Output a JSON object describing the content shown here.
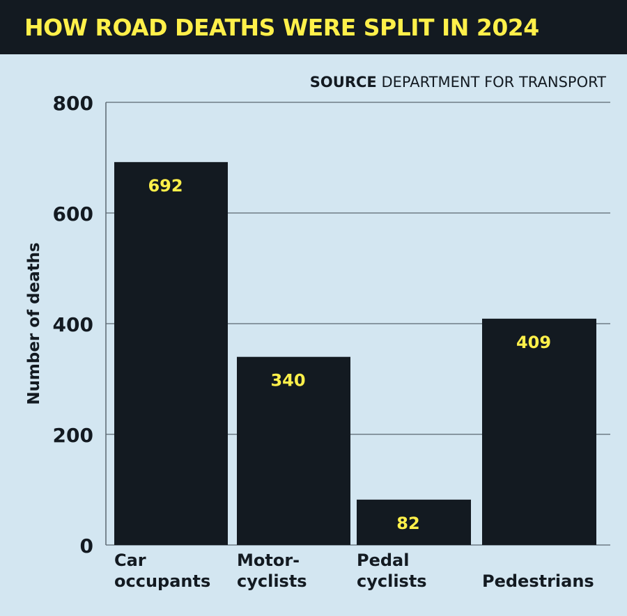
{
  "title": "HOW ROAD DEATHS WERE SPLIT IN 2024",
  "source_label": "SOURCE",
  "source_text": "DEPARTMENT FOR TRANSPORT",
  "colors": {
    "header": "#131a21",
    "title": "#fff04a",
    "background": "#d3e6f1",
    "bar": "#131a21",
    "bar_label": "#fff04a"
  },
  "chart_data": {
    "type": "bar",
    "title": "HOW ROAD DEATHS WERE SPLIT IN 2024",
    "categories": [
      [
        "Car",
        "occupants"
      ],
      [
        "Motor-",
        "cyclists"
      ],
      [
        "Pedal",
        "cyclists"
      ],
      [
        "Pedestrians"
      ]
    ],
    "values": [
      692,
      340,
      82,
      409
    ],
    "ylabel": "Number of deaths",
    "xlabel": "",
    "ylim": [
      0,
      800
    ],
    "yticks": [
      0,
      200,
      400,
      600,
      800
    ],
    "grid": true,
    "data_labels": true
  }
}
